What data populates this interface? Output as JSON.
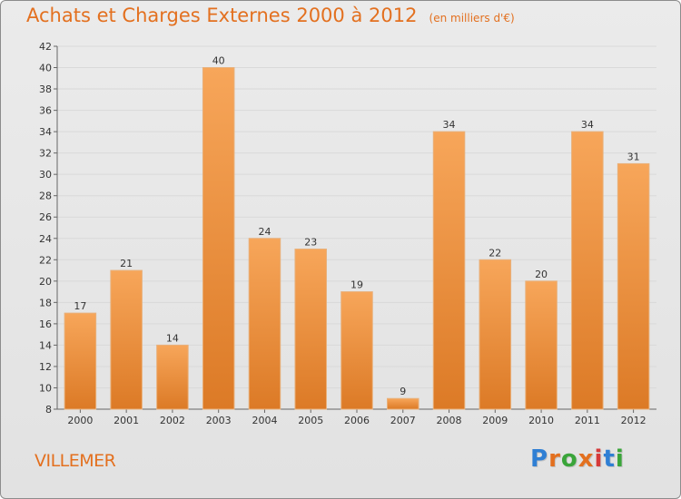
{
  "header": {
    "title": "Achats et Charges Externes 2000 à 2012",
    "subtitle": "(en milliers d'€)"
  },
  "footer": {
    "commune": "VILLEMER",
    "brand": "Proxiti",
    "brand_colors": [
      "#2f7fd4",
      "#e3701f",
      "#3aa53a",
      "#e3701f",
      "#d63a3a",
      "#2f7fd4",
      "#3aa53a"
    ]
  },
  "colors": {
    "bar_light": "#f7a65a",
    "bar_dark": "#dc7a26",
    "text_accent": "#e3701f",
    "grid": "#d9d9d9"
  },
  "chart_data": {
    "type": "bar",
    "title": "Achats et Charges Externes 2000 à 2012",
    "subtitle": "(en milliers d'€)",
    "xlabel": "",
    "ylabel": "",
    "categories": [
      "2000",
      "2001",
      "2002",
      "2003",
      "2004",
      "2005",
      "2006",
      "2007",
      "2008",
      "2009",
      "2010",
      "2011",
      "2012"
    ],
    "values": [
      17,
      21,
      14,
      40,
      24,
      23,
      19,
      9,
      34,
      22,
      20,
      34,
      31
    ],
    "ylim": [
      8,
      42
    ],
    "yticks": [
      8,
      10,
      12,
      14,
      16,
      18,
      20,
      22,
      24,
      26,
      28,
      30,
      32,
      34,
      36,
      38,
      40,
      42
    ],
    "grid": true,
    "data_labels": true
  }
}
